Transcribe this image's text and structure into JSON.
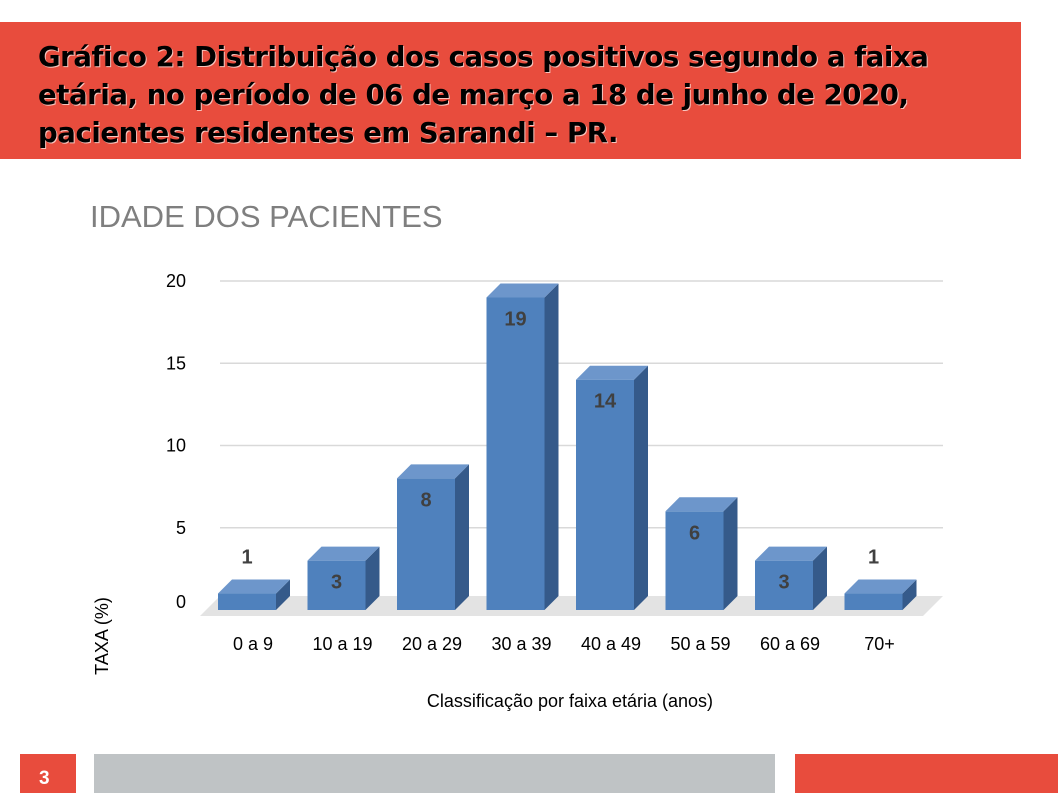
{
  "slide": {
    "title": "Gráfico 2: Distribuição dos casos positivos segundo a faixa etária, no período de 06 de março a 18 de junho de 2020, pacientes residentes em Sarandi – PR.",
    "page_number": "3"
  },
  "colors": {
    "accent": "#e84c3d",
    "footer_gray": "#bfc3c5",
    "bar_front": "#4f81bd",
    "bar_top": "#6d96cb",
    "bar_side": "#355a8a"
  },
  "chart_data": {
    "type": "bar",
    "title": "IDADE DOS PACIENTES",
    "xlabel": "Classificação por faixa etária (anos)",
    "ylabel": "TAXA (%)",
    "categories": [
      "0 a 9",
      "10 a 19",
      "20 a 29",
      "30 a 39",
      "40 a 49",
      "50 a 59",
      "60 a 69",
      "70+"
    ],
    "values": [
      1,
      3,
      8,
      19,
      14,
      6,
      3,
      1
    ],
    "value_labels": [
      "1",
      "3",
      "8",
      "19",
      "14",
      "6",
      "3",
      "1"
    ],
    "ylim": [
      0,
      20
    ],
    "yticks": [
      0,
      5,
      10,
      15,
      20
    ],
    "grid": true,
    "style": "3d-column"
  }
}
